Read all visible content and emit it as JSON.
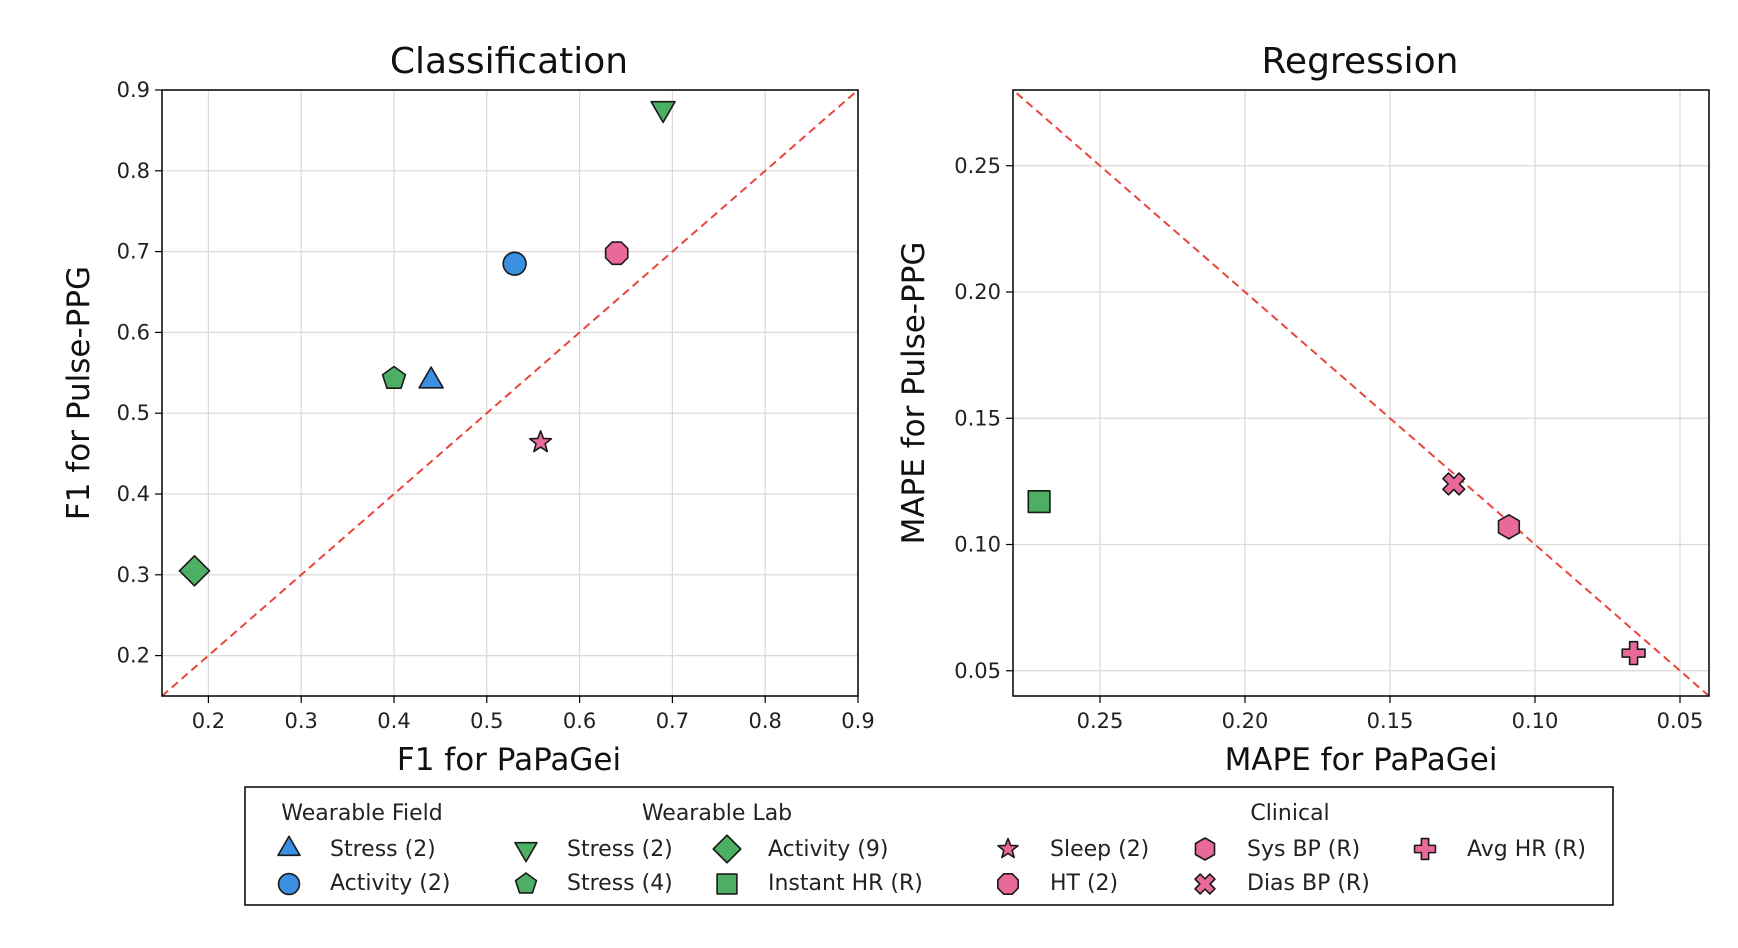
{
  "colors": {
    "blue": "#3b8fe0",
    "green": "#4caf63",
    "pink": "#e8699a",
    "diagonal": "#e8463c",
    "grid": "#d9d9d9"
  },
  "chart_data": [
    {
      "type": "scatter",
      "title": "Classification",
      "xlabel": "F1 for PaPaGei",
      "ylabel": "F1 for Pulse-PPG",
      "xlim": [
        0.15,
        0.9
      ],
      "ylim": [
        0.15,
        0.9
      ],
      "x_ticks": [
        0.2,
        0.3,
        0.4,
        0.5,
        0.6,
        0.7,
        0.8,
        0.9
      ],
      "y_ticks": [
        0.2,
        0.3,
        0.4,
        0.5,
        0.6,
        0.7,
        0.8,
        0.9
      ],
      "x_tick_labels": [
        "0.2",
        "0.3",
        "0.4",
        "0.5",
        "0.6",
        "0.7",
        "0.8",
        "0.9"
      ],
      "y_tick_labels": [
        "0.2",
        "0.3",
        "0.4",
        "0.5",
        "0.6",
        "0.7",
        "0.8",
        "0.9"
      ],
      "x_inverted": false,
      "y_inverted": false,
      "grid": true,
      "diagonal": true,
      "points": [
        {
          "x": 0.44,
          "y": 0.54,
          "marker": "triangle-up",
          "color": "blue",
          "label": "Stress (2)"
        },
        {
          "x": 0.53,
          "y": 0.685,
          "marker": "circle",
          "color": "blue",
          "label": "Activity (2)"
        },
        {
          "x": 0.69,
          "y": 0.877,
          "marker": "triangle-down",
          "color": "green",
          "label": "Stress (2)"
        },
        {
          "x": 0.4,
          "y": 0.543,
          "marker": "pentagon",
          "color": "green",
          "label": "Stress (4)"
        },
        {
          "x": 0.185,
          "y": 0.305,
          "marker": "diamond",
          "color": "green",
          "label": "Activity (9)"
        },
        {
          "x": 0.558,
          "y": 0.464,
          "marker": "star",
          "color": "pink",
          "label": "Sleep (2)"
        },
        {
          "x": 0.64,
          "y": 0.698,
          "marker": "octagon",
          "color": "pink",
          "label": "HT (2)"
        }
      ]
    },
    {
      "type": "scatter",
      "title": "Regression",
      "xlabel": "MAPE for PaPaGei",
      "ylabel": "MAPE for Pulse-PPG",
      "xlim": [
        0.28,
        0.04
      ],
      "ylim": [
        0.04,
        0.28
      ],
      "x_ticks": [
        0.25,
        0.2,
        0.15,
        0.1,
        0.05
      ],
      "y_ticks": [
        0.05,
        0.1,
        0.15,
        0.2,
        0.25
      ],
      "x_tick_labels": [
        "0.25",
        "0.20",
        "0.15",
        "0.10",
        "0.05"
      ],
      "y_tick_labels": [
        "0.05",
        "0.10",
        "0.15",
        "0.20",
        "0.25"
      ],
      "x_inverted": true,
      "y_inverted": true,
      "grid": true,
      "diagonal": true,
      "points": [
        {
          "x": 0.271,
          "y": 0.117,
          "marker": "square",
          "color": "green",
          "label": "Instant HR (R)"
        },
        {
          "x": 0.109,
          "y": 0.107,
          "marker": "hexagon",
          "color": "pink",
          "label": "Sys BP (R)"
        },
        {
          "x": 0.128,
          "y": 0.124,
          "marker": "x",
          "color": "pink",
          "label": "Dias BP (R)"
        },
        {
          "x": 0.066,
          "y": 0.057,
          "marker": "plus",
          "color": "pink",
          "label": "Avg HR (R)"
        }
      ]
    }
  ],
  "legend": {
    "groups": [
      {
        "title": "Wearable Field",
        "items": [
          {
            "label": "Stress (2)",
            "marker": "triangle-up",
            "color": "blue"
          },
          {
            "label": "Activity (2)",
            "marker": "circle",
            "color": "blue"
          }
        ]
      },
      {
        "title": "Wearable Lab",
        "items": [
          {
            "label": "Stress (2)",
            "marker": "triangle-down",
            "color": "green"
          },
          {
            "label": "Stress (4)",
            "marker": "pentagon",
            "color": "green"
          },
          {
            "label": "Activity (9)",
            "marker": "diamond",
            "color": "green"
          },
          {
            "label": "Instant HR (R)",
            "marker": "square",
            "color": "green"
          }
        ]
      },
      {
        "title": "Clinical",
        "items": [
          {
            "label": "Sleep (2)",
            "marker": "star",
            "color": "pink"
          },
          {
            "label": "HT (2)",
            "marker": "octagon",
            "color": "pink"
          },
          {
            "label": "Sys BP (R)",
            "marker": "hexagon",
            "color": "pink"
          },
          {
            "label": "Dias BP (R)",
            "marker": "x",
            "color": "pink"
          },
          {
            "label": "Avg HR (R)",
            "marker": "plus",
            "color": "pink"
          }
        ]
      }
    ]
  }
}
